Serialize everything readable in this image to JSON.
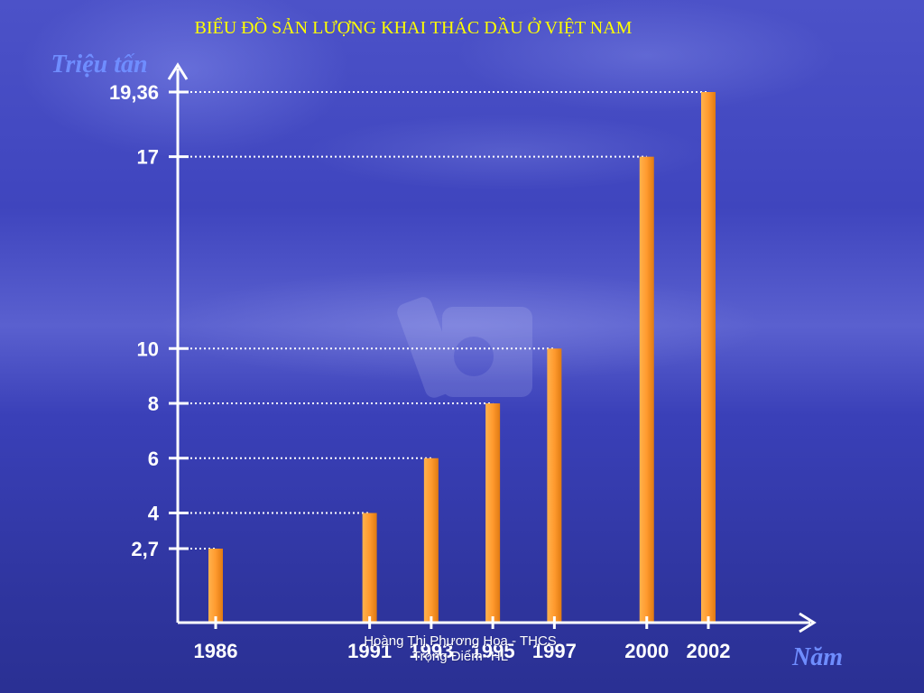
{
  "chart_data": {
    "type": "bar",
    "title": "BIỂU ĐỒ SẢN LƯỢNG KHAI THÁC DẦU Ở VIỆT NAM",
    "ylabel": "Triệu tấn",
    "xlabel": "Năm",
    "categories": [
      "1986",
      "1991",
      "1993",
      "1995",
      "1997",
      "2000",
      "2002"
    ],
    "x": [
      1986,
      1991,
      1993,
      1995,
      1997,
      2000,
      2002
    ],
    "values": [
      2.7,
      4,
      6,
      8,
      10,
      17,
      19.36
    ],
    "ytick_values": [
      2.7,
      4,
      6,
      8,
      10,
      17,
      19.36
    ],
    "ytick_labels": [
      "2,7",
      "4",
      "6",
      "8",
      "10",
      "17",
      "19,36"
    ],
    "ylim": [
      0,
      20.5
    ],
    "grid": "dotted reference lines from each bar top to the y-axis",
    "bar_color": "#ff9a2e",
    "axis_color": "#ffffff",
    "title_color": "#ffff00",
    "axis_label_color": "#6f8dff"
  },
  "footer": {
    "line1": "Hoàng Thị Phương Hoa - THCS",
    "line2": "Trọng Điểm- HL"
  }
}
